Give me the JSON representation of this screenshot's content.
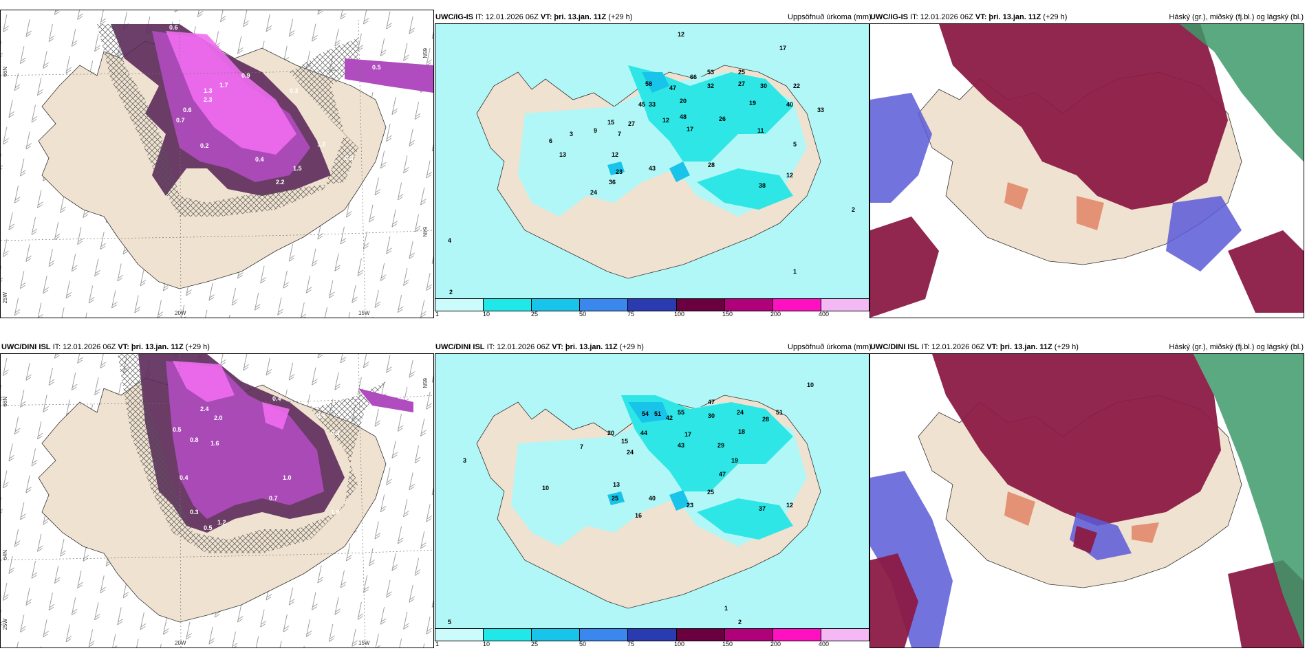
{
  "colors": {
    "land": "#efe2d0",
    "sea": "#ffffff",
    "precip_light": "#b2f7f7",
    "precip_mid": "#2ee6e6",
    "snow_pink": "#f06df0",
    "snow_purple": "#b04bc0",
    "snow_dark": "#5b2a5a",
    "cloud_red": "#8b1a45",
    "cloud_blue": "#5a5ad8",
    "cloud_green": "#3d9a6a"
  },
  "colorbar": {
    "colors": [
      "#ccfbfb",
      "#20e8e8",
      "#18c4ea",
      "#3a88ee",
      "#2a3ab0",
      "#6a0040",
      "#b0007a",
      "#ff10c0",
      "#f4b8f4"
    ],
    "ticks": [
      "1",
      "10",
      "25",
      "50",
      "75",
      "100",
      "150",
      "200",
      "400"
    ]
  },
  "rows": [
    {
      "model": "UWC/IG-IS",
      "it": "IT: 12.01.2026 06Z",
      "vt": "VT: þri. 13.jan. 11Z",
      "lead": "(+29 h)",
      "precip_title": "Uppsöfnuð úrkoma (mm)",
      "cloud_title": "Háský (gr.), miðský (fj.bl.) og lágský (bl.)",
      "axes": {
        "lat66": "66N",
        "lat65": "65N",
        "lat64": "64N",
        "lon25": "25W",
        "lon20": "20W",
        "lon15": "15W"
      },
      "snow_values": [
        "0.6",
        "0.8",
        "0.9",
        "0.4",
        "0.5",
        "0.3",
        "1.3",
        "1.7",
        "2.3",
        "1.5",
        "2.2",
        "0.2",
        "0.7",
        "0.6",
        "1.2",
        "0.4",
        "0.3"
      ],
      "precip_values": [
        "12",
        "25",
        "17",
        "53",
        "58",
        "47",
        "66",
        "45",
        "33",
        "32",
        "27",
        "30",
        "22",
        "40",
        "20",
        "19",
        "33",
        "48",
        "26",
        "17",
        "12",
        "11",
        "27",
        "15",
        "9",
        "7",
        "12",
        "43",
        "23",
        "28",
        "36",
        "24",
        "38",
        "12",
        "13",
        "6",
        "3",
        "5",
        "4",
        "2",
        "1",
        "2"
      ]
    },
    {
      "model": "UWC/DINI ISL",
      "it": "IT: 12.01.2026 06Z",
      "vt": "VT: þri. 13.jan. 11Z",
      "lead": "(+29 h)",
      "precip_title": "Uppsöfnuð úrkoma (mm)",
      "cloud_title": "Háský (gr.), miðský (fj.bl.) og lágský (bl.)",
      "axes": {
        "lat66": "66N",
        "lat65": "65N",
        "lat64": "64N",
        "lon25": "25W",
        "lon20": "20W",
        "lon15": "15W"
      },
      "snow_values": [
        "2.4",
        "2.0",
        "0.5",
        "0.8",
        "1.6",
        "0.4",
        "0.9",
        "0.6",
        "0.3",
        "1.0",
        "0.7",
        "1.8",
        "0.5",
        "0.3",
        "1.2",
        "0.4"
      ],
      "precip_values": [
        "54",
        "51",
        "42",
        "55",
        "47",
        "30",
        "24",
        "28",
        "51",
        "20",
        "15",
        "24",
        "44",
        "18",
        "17",
        "43",
        "29",
        "19",
        "47",
        "25",
        "40",
        "23",
        "25",
        "37",
        "12",
        "16",
        "13",
        "10",
        "7",
        "5",
        "3",
        "2",
        "1",
        "10"
      ]
    }
  ]
}
